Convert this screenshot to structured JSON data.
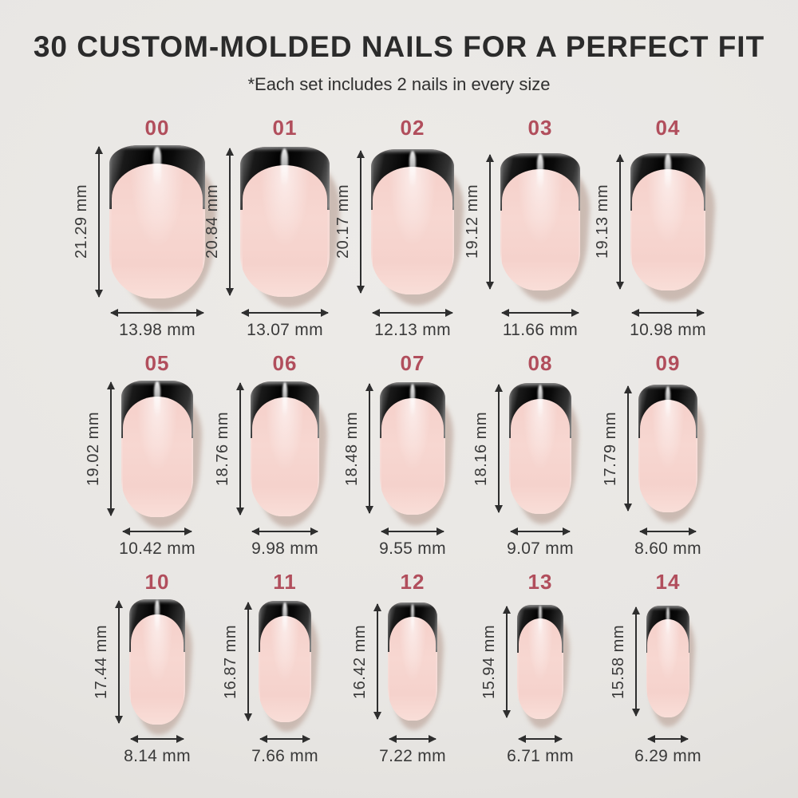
{
  "header": {
    "title": "30 CUSTOM-MOLDED NAILS FOR A PERFECT FIT",
    "subtitle": "*Each set includes 2 nails in every size"
  },
  "units": "mm",
  "colors": {
    "background": "#e8e6e3",
    "title_text": "#2b2b2b",
    "size_number": "#b14e5c",
    "measure_text": "#3a3a3a",
    "arrow": "#2e2e2e",
    "nail_pink": "#f6d5cf",
    "nail_tip_chrome_black": "#0a0a0a",
    "nail_shadow": "#c6b3aa"
  },
  "nails": [
    {
      "size": "00",
      "height": "21.29 mm",
      "width": "13.98 mm"
    },
    {
      "size": "01",
      "height": "20.84 mm",
      "width": "13.07 mm"
    },
    {
      "size": "02",
      "height": "20.17 mm",
      "width": "12.13 mm"
    },
    {
      "size": "03",
      "height": "19.12 mm",
      "width": "11.66 mm"
    },
    {
      "size": "04",
      "height": "19.13 mm",
      "width": "10.98 mm"
    },
    {
      "size": "05",
      "height": "19.02 mm",
      "width": "10.42 mm"
    },
    {
      "size": "06",
      "height": "18.76 mm",
      "width": "9.98 mm"
    },
    {
      "size": "07",
      "height": "18.48 mm",
      "width": "9.55 mm"
    },
    {
      "size": "08",
      "height": "18.16 mm",
      "width": "9.07 mm"
    },
    {
      "size": "09",
      "height": "17.79 mm",
      "width": "8.60 mm"
    },
    {
      "size": "10",
      "height": "17.44 mm",
      "width": "8.14 mm"
    },
    {
      "size": "11",
      "height": "16.87 mm",
      "width": "7.66 mm"
    },
    {
      "size": "12",
      "height": "16.42 mm",
      "width": "7.22 mm"
    },
    {
      "size": "13",
      "height": "15.94 mm",
      "width": "6.71 mm"
    },
    {
      "size": "14",
      "height": "15.58 mm",
      "width": "6.29 mm"
    }
  ],
  "rows": [
    [
      0,
      1,
      2,
      3,
      4
    ],
    [
      5,
      6,
      7,
      8,
      9
    ],
    [
      10,
      11,
      12,
      13,
      14
    ]
  ]
}
